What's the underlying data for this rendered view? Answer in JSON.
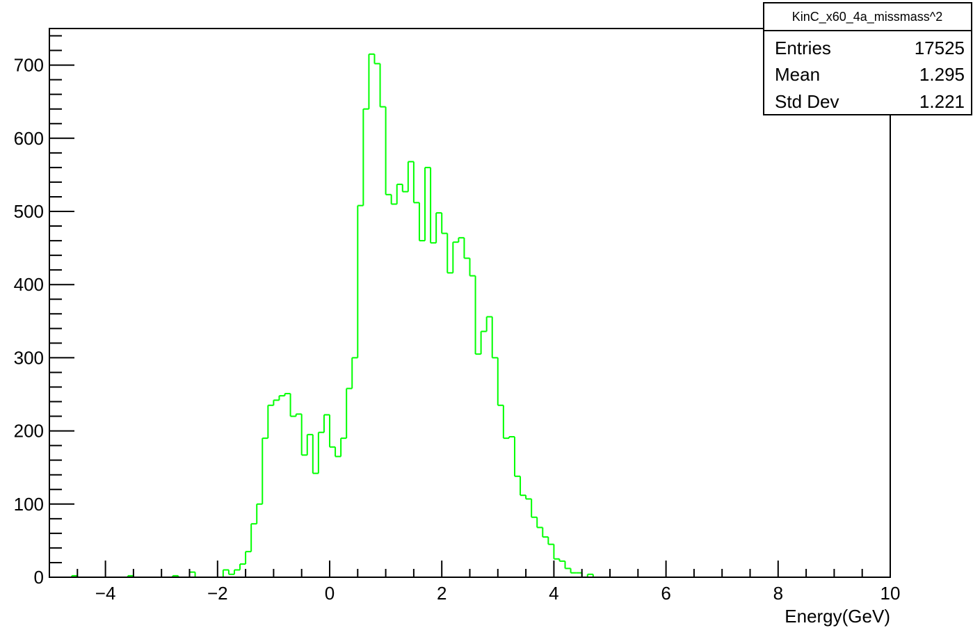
{
  "chart_data": {
    "type": "bar",
    "style": "step-histogram",
    "line_color": "#00ff00",
    "x_range": [
      -5,
      10
    ],
    "y_range": [
      0,
      750
    ],
    "bin_width": 0.1,
    "xlabel": "Energy(GeV)",
    "x_ticks": [
      -4,
      -2,
      0,
      2,
      4,
      6,
      8,
      10
    ],
    "x_tick_labels": [
      "−4",
      "−2",
      "0",
      "2",
      "4",
      "6",
      "8",
      "10"
    ],
    "y_ticks": [
      0,
      100,
      200,
      300,
      400,
      500,
      600,
      700
    ],
    "y_tick_labels": [
      "0",
      "100",
      "200",
      "300",
      "400",
      "500",
      "600",
      "700"
    ],
    "bins": [
      {
        "x": -4.6,
        "y": 2
      },
      {
        "x": -3.6,
        "y": 2
      },
      {
        "x": -2.8,
        "y": 2
      },
      {
        "x": -2.5,
        "y": 7
      },
      {
        "x": -1.9,
        "y": 10
      },
      {
        "x": -1.8,
        "y": 4
      },
      {
        "x": -1.7,
        "y": 10
      },
      {
        "x": -1.6,
        "y": 18
      },
      {
        "x": -1.5,
        "y": 35
      },
      {
        "x": -1.4,
        "y": 73
      },
      {
        "x": -1.3,
        "y": 100
      },
      {
        "x": -1.2,
        "y": 190
      },
      {
        "x": -1.1,
        "y": 235
      },
      {
        "x": -1.0,
        "y": 242
      },
      {
        "x": -0.9,
        "y": 248
      },
      {
        "x": -0.8,
        "y": 251
      },
      {
        "x": -0.7,
        "y": 220
      },
      {
        "x": -0.6,
        "y": 223
      },
      {
        "x": -0.5,
        "y": 167
      },
      {
        "x": -0.4,
        "y": 195
      },
      {
        "x": -0.3,
        "y": 142
      },
      {
        "x": -0.2,
        "y": 198
      },
      {
        "x": -0.1,
        "y": 222
      },
      {
        "x": 0.0,
        "y": 178
      },
      {
        "x": 0.1,
        "y": 165
      },
      {
        "x": 0.2,
        "y": 190
      },
      {
        "x": 0.3,
        "y": 258
      },
      {
        "x": 0.4,
        "y": 300
      },
      {
        "x": 0.5,
        "y": 508
      },
      {
        "x": 0.6,
        "y": 640
      },
      {
        "x": 0.7,
        "y": 715
      },
      {
        "x": 0.8,
        "y": 702
      },
      {
        "x": 0.9,
        "y": 643
      },
      {
        "x": 1.0,
        "y": 523
      },
      {
        "x": 1.1,
        "y": 510
      },
      {
        "x": 1.2,
        "y": 537
      },
      {
        "x": 1.3,
        "y": 527
      },
      {
        "x": 1.4,
        "y": 568
      },
      {
        "x": 1.5,
        "y": 512
      },
      {
        "x": 1.6,
        "y": 460
      },
      {
        "x": 1.7,
        "y": 560
      },
      {
        "x": 1.8,
        "y": 457
      },
      {
        "x": 1.9,
        "y": 498
      },
      {
        "x": 2.0,
        "y": 470
      },
      {
        "x": 2.1,
        "y": 416
      },
      {
        "x": 2.2,
        "y": 458
      },
      {
        "x": 2.3,
        "y": 464
      },
      {
        "x": 2.4,
        "y": 436
      },
      {
        "x": 2.5,
        "y": 412
      },
      {
        "x": 2.6,
        "y": 305
      },
      {
        "x": 2.7,
        "y": 336
      },
      {
        "x": 2.8,
        "y": 356
      },
      {
        "x": 2.9,
        "y": 300
      },
      {
        "x": 3.0,
        "y": 235
      },
      {
        "x": 3.1,
        "y": 190
      },
      {
        "x": 3.2,
        "y": 192
      },
      {
        "x": 3.3,
        "y": 138
      },
      {
        "x": 3.4,
        "y": 112
      },
      {
        "x": 3.5,
        "y": 107
      },
      {
        "x": 3.6,
        "y": 82
      },
      {
        "x": 3.7,
        "y": 68
      },
      {
        "x": 3.8,
        "y": 55
      },
      {
        "x": 3.9,
        "y": 45
      },
      {
        "x": 4.0,
        "y": 25
      },
      {
        "x": 4.1,
        "y": 22
      },
      {
        "x": 4.2,
        "y": 12
      },
      {
        "x": 4.3,
        "y": 6
      },
      {
        "x": 4.4,
        "y": 6
      },
      {
        "x": 4.6,
        "y": 4
      }
    ]
  },
  "stats_box": {
    "title": "KinC_x60_4a_missmass^2",
    "rows": [
      {
        "label": "Entries",
        "value": "17525"
      },
      {
        "label": "Mean",
        "value": "1.295"
      },
      {
        "label": "Std Dev",
        "value": "1.221"
      }
    ]
  }
}
